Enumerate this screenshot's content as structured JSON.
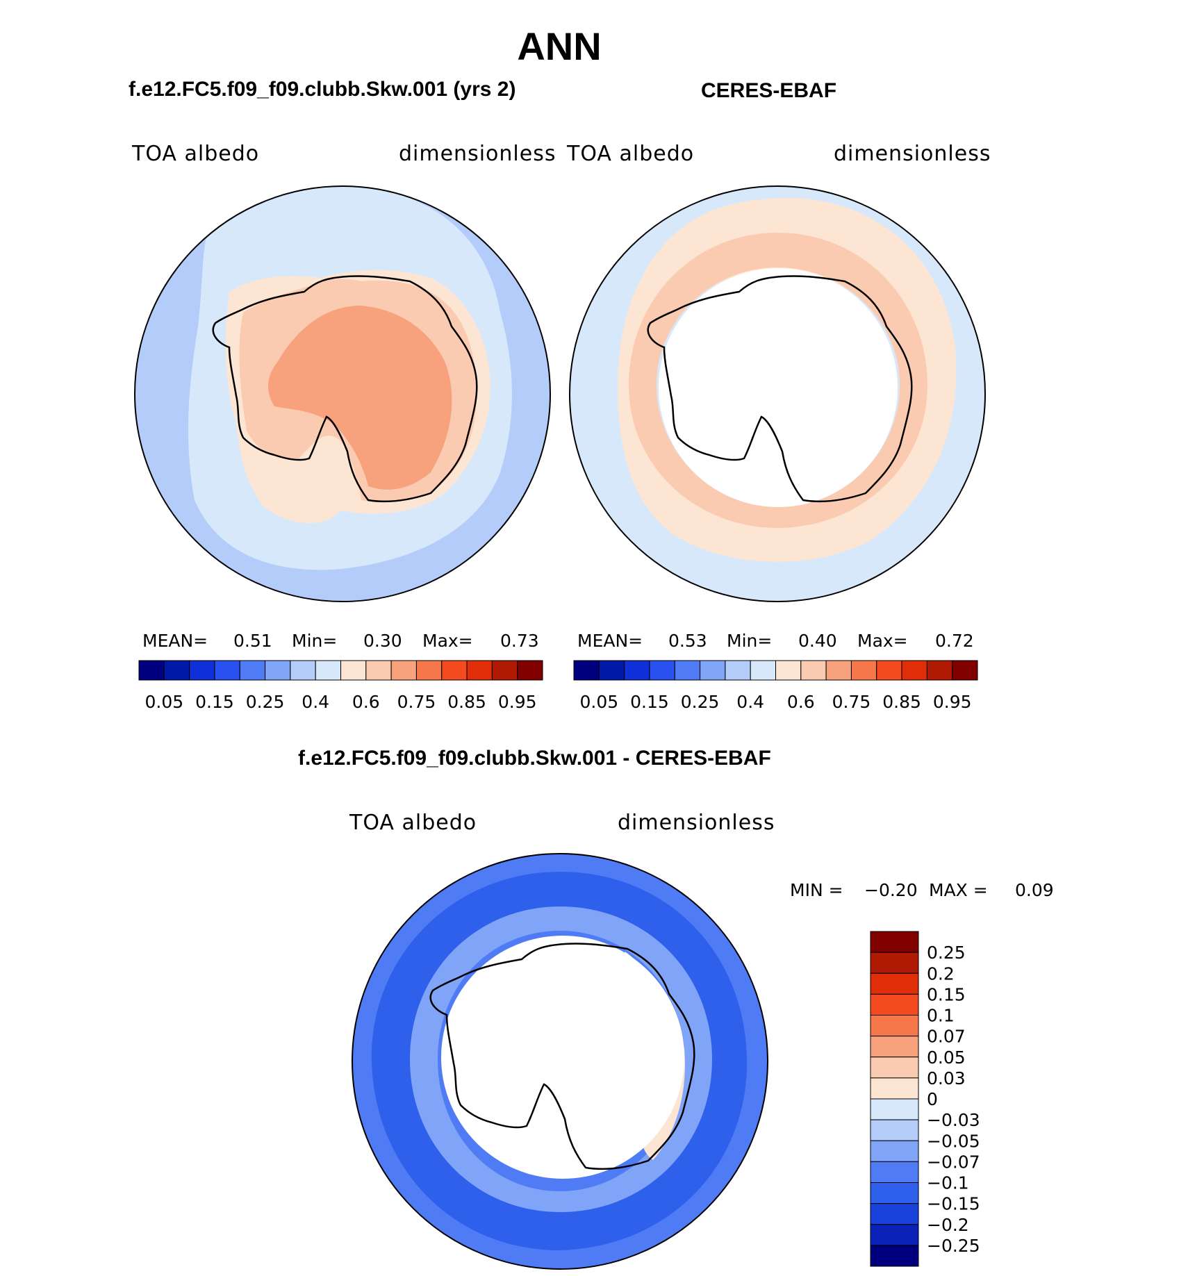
{
  "figure": {
    "title": "ANN",
    "diff_title": "f.e12.FC5.f09_f09.clubb.Skw.001 - CERES-EBAF"
  },
  "colors": {
    "abs_scale": [
      "#00007f",
      "#0019a8",
      "#0f2fd8",
      "#2a52f0",
      "#4f7cf5",
      "#80a4f7",
      "#b3ccf9",
      "#d7e8fb",
      "#fde5d3",
      "#fbcbb1",
      "#f8a17d",
      "#f6784a",
      "#f44a1f",
      "#df2e08",
      "#b01a04",
      "#800000"
    ],
    "diff_scale": [
      "#00007f",
      "#0b22b8",
      "#1942dc",
      "#2e60ec",
      "#4f7cf5",
      "#80a4f7",
      "#b3ccf9",
      "#d7e8fb",
      "#fde5d3",
      "#fbcbb1",
      "#f8a17d",
      "#f6784a",
      "#f44a1f",
      "#df2e08",
      "#b01a04",
      "#800000"
    ],
    "coast": "#000000"
  },
  "chart_data": [
    {
      "type": "heatmap",
      "projection": "south-polar-stereographic",
      "title": "f.e12.FC5.f09_f09.clubb.Skw.001 (yrs 2)",
      "left_label": "TOA albedo",
      "right_label": "dimensionless",
      "stats": {
        "mean_label": "MEAN=",
        "mean": "0.51",
        "min_label": "Min=",
        "min": "0.30",
        "max_label": "Max=",
        "max": "0.73"
      },
      "colorbar": {
        "orientation": "horizontal",
        "levels": [
          "0.05",
          "0.15",
          "0.25",
          "0.4",
          "0.6",
          "0.75",
          "0.85",
          "0.95"
        ]
      }
    },
    {
      "type": "heatmap",
      "projection": "south-polar-stereographic",
      "title": "CERES-EBAF",
      "left_label": "TOA albedo",
      "right_label": "dimensionless",
      "stats": {
        "mean_label": "MEAN=",
        "mean": "0.53",
        "min_label": "Min=",
        "min": "0.40",
        "max_label": "Max=",
        "max": "0.72"
      },
      "colorbar": {
        "orientation": "horizontal",
        "levels": [
          "0.05",
          "0.15",
          "0.25",
          "0.4",
          "0.6",
          "0.75",
          "0.85",
          "0.95"
        ]
      }
    },
    {
      "type": "heatmap",
      "projection": "south-polar-stereographic",
      "title": "f.e12.FC5.f09_f09.clubb.Skw.001 - CERES-EBAF",
      "left_label": "TOA albedo",
      "right_label": "dimensionless",
      "stats": {
        "min_label": "MIN =",
        "min": "−0.20",
        "max_label": "MAX =",
        "max": "0.09"
      },
      "colorbar": {
        "orientation": "vertical",
        "levels": [
          "0.25",
          "0.2",
          "0.15",
          "0.1",
          "0.07",
          "0.05",
          "0.03",
          "0",
          "−0.03",
          "−0.05",
          "−0.07",
          "−0.1",
          "−0.15",
          "−0.2",
          "−0.25"
        ]
      }
    }
  ]
}
